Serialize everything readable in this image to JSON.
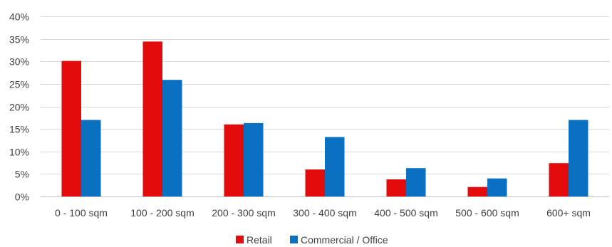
{
  "chart_data": {
    "type": "bar",
    "title": "",
    "xlabel": "",
    "ylabel": "",
    "categories": [
      "0 - 100 sqm",
      "100 - 200 sqm",
      "200 - 300 sqm",
      "300 - 400 sqm",
      "400 - 500 sqm",
      "500 - 600 sqm",
      "600+ sqm"
    ],
    "series": [
      {
        "name": "Retail",
        "color": "#e30b0b",
        "values": [
          30.1,
          34.4,
          16.0,
          6.0,
          3.8,
          2.1,
          7.4
        ]
      },
      {
        "name": "Commercial / Office",
        "color": "#0a70c0",
        "values": [
          17.0,
          25.9,
          16.3,
          13.2,
          6.3,
          4.0,
          17.0
        ]
      }
    ],
    "ylim": [
      0,
      40
    ],
    "yticks": [
      0,
      5,
      10,
      15,
      20,
      25,
      30,
      35,
      40
    ],
    "ytick_labels": [
      "0%",
      "5%",
      "10%",
      "15%",
      "20%",
      "25%",
      "30%",
      "35%",
      "40%"
    ],
    "grid": true,
    "legend_position": "bottom"
  }
}
